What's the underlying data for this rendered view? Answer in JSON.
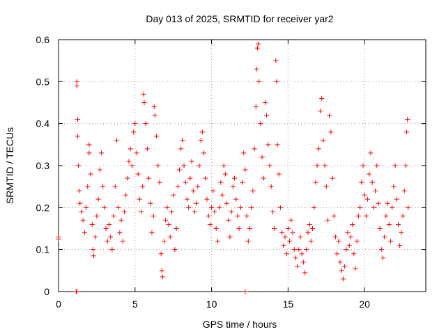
{
  "chart_data": {
    "type": "scatter",
    "title": "Day 013 of 2025, SRMTID for receiver yar2",
    "xlabel": "GPS time / hours",
    "ylabel": "SRMTID / TECUs",
    "xlim": [
      0,
      24
    ],
    "ylim": [
      0,
      0.6
    ],
    "xticks": [
      0,
      5,
      10,
      15,
      20
    ],
    "yticks": [
      0,
      0.1,
      0.2,
      0.3,
      0.4,
      0.5,
      0.6
    ],
    "grid": true,
    "marker": "plus",
    "series": [
      {
        "name": "SRMTID",
        "color": "#ff0000",
        "points": [
          [
            0.0,
            0.13
          ],
          [
            0.0,
            0.125
          ],
          [
            1.15,
            0.0
          ],
          [
            1.2,
            0.0
          ],
          [
            12.2,
            0.0
          ],
          [
            1.2,
            0.5
          ],
          [
            1.2,
            0.49
          ],
          [
            1.25,
            0.41
          ],
          [
            1.25,
            0.37
          ],
          [
            1.3,
            0.3
          ],
          [
            1.35,
            0.24
          ],
          [
            1.4,
            0.21
          ],
          [
            1.5,
            0.19
          ],
          [
            1.6,
            0.17
          ],
          [
            1.7,
            0.14
          ],
          [
            1.8,
            0.2
          ],
          [
            1.9,
            0.25
          ],
          [
            2.0,
            0.33
          ],
          [
            2.0,
            0.35
          ],
          [
            2.1,
            0.28
          ],
          [
            2.2,
            0.16
          ],
          [
            2.25,
            0.1
          ],
          [
            2.3,
            0.085
          ],
          [
            2.4,
            0.13
          ],
          [
            2.5,
            0.18
          ],
          [
            2.6,
            0.22
          ],
          [
            2.7,
            0.29
          ],
          [
            2.8,
            0.33
          ],
          [
            2.9,
            0.25
          ],
          [
            3.0,
            0.2
          ],
          [
            3.1,
            0.15
          ],
          [
            3.2,
            0.12
          ],
          [
            3.3,
            0.16
          ],
          [
            3.4,
            0.13
          ],
          [
            3.5,
            0.1
          ],
          [
            3.6,
            0.18
          ],
          [
            3.7,
            0.25
          ],
          [
            3.8,
            0.36
          ],
          [
            3.9,
            0.2
          ],
          [
            4.0,
            0.14
          ],
          [
            4.1,
            0.17
          ],
          [
            4.2,
            0.12
          ],
          [
            4.3,
            0.19
          ],
          [
            4.4,
            0.23
          ],
          [
            4.5,
            0.27
          ],
          [
            4.6,
            0.31
          ],
          [
            4.7,
            0.34
          ],
          [
            4.8,
            0.3
          ],
          [
            4.9,
            0.38
          ],
          [
            5.0,
            0.4
          ],
          [
            5.1,
            0.33
          ],
          [
            5.2,
            0.28
          ],
          [
            5.3,
            0.22
          ],
          [
            5.4,
            0.19
          ],
          [
            5.5,
            0.25
          ],
          [
            5.55,
            0.47
          ],
          [
            5.6,
            0.45
          ],
          [
            5.7,
            0.4
          ],
          [
            5.8,
            0.34
          ],
          [
            5.9,
            0.27
          ],
          [
            6.0,
            0.21
          ],
          [
            6.1,
            0.14
          ],
          [
            6.2,
            0.18
          ],
          [
            6.25,
            0.44
          ],
          [
            6.3,
            0.42
          ],
          [
            6.4,
            0.37
          ],
          [
            6.5,
            0.3
          ],
          [
            6.6,
            0.26
          ],
          [
            6.7,
            0.09
          ],
          [
            6.75,
            0.05
          ],
          [
            6.8,
            0.035
          ],
          [
            6.9,
            0.12
          ],
          [
            7.0,
            0.17
          ],
          [
            7.1,
            0.2
          ],
          [
            7.2,
            0.16
          ],
          [
            7.3,
            0.13
          ],
          [
            7.4,
            0.19
          ],
          [
            7.5,
            0.23
          ],
          [
            7.6,
            0.1
          ],
          [
            7.7,
            0.15
          ],
          [
            7.8,
            0.25
          ],
          [
            7.9,
            0.29
          ],
          [
            8.0,
            0.34
          ],
          [
            8.1,
            0.36
          ],
          [
            8.2,
            0.3
          ],
          [
            8.3,
            0.26
          ],
          [
            8.4,
            0.22
          ],
          [
            8.5,
            0.2
          ],
          [
            8.6,
            0.27
          ],
          [
            8.7,
            0.31
          ],
          [
            8.8,
            0.24
          ],
          [
            8.9,
            0.19
          ],
          [
            9.0,
            0.21
          ],
          [
            9.1,
            0.25
          ],
          [
            9.2,
            0.3
          ],
          [
            9.3,
            0.36
          ],
          [
            9.4,
            0.38
          ],
          [
            9.5,
            0.33
          ],
          [
            9.6,
            0.27
          ],
          [
            9.7,
            0.22
          ],
          [
            9.8,
            0.18
          ],
          [
            9.9,
            0.16
          ],
          [
            10.0,
            0.2
          ],
          [
            10.1,
            0.24
          ],
          [
            10.2,
            0.19
          ],
          [
            10.3,
            0.15
          ],
          [
            10.4,
            0.12
          ],
          [
            10.5,
            0.2
          ],
          [
            10.6,
            0.26
          ],
          [
            10.7,
            0.23
          ],
          [
            10.8,
            0.3
          ],
          [
            10.9,
            0.28
          ],
          [
            11.0,
            0.21
          ],
          [
            11.1,
            0.17
          ],
          [
            11.2,
            0.13
          ],
          [
            11.3,
            0.19
          ],
          [
            11.4,
            0.25
          ],
          [
            11.5,
            0.27
          ],
          [
            11.6,
            0.22
          ],
          [
            11.7,
            0.18
          ],
          [
            11.8,
            0.15
          ],
          [
            11.9,
            0.2
          ],
          [
            12.0,
            0.26
          ],
          [
            12.1,
            0.33
          ],
          [
            12.2,
            0.29
          ],
          [
            12.3,
            0.18
          ],
          [
            12.4,
            0.12
          ],
          [
            12.5,
            0.15
          ],
          [
            12.6,
            0.2
          ],
          [
            12.7,
            0.24
          ],
          [
            12.8,
            0.34
          ],
          [
            12.9,
            0.44
          ],
          [
            12.95,
            0.53
          ],
          [
            13.0,
            0.58
          ],
          [
            13.05,
            0.59
          ],
          [
            13.1,
            0.5
          ],
          [
            13.2,
            0.4
          ],
          [
            13.3,
            0.32
          ],
          [
            13.4,
            0.27
          ],
          [
            13.5,
            0.45
          ],
          [
            13.6,
            0.42
          ],
          [
            13.7,
            0.35
          ],
          [
            13.8,
            0.3
          ],
          [
            13.9,
            0.25
          ],
          [
            14.0,
            0.19
          ],
          [
            14.1,
            0.15
          ],
          [
            14.2,
            0.55
          ],
          [
            14.25,
            0.5
          ],
          [
            14.3,
            0.35
          ],
          [
            14.4,
            0.28
          ],
          [
            14.5,
            0.2
          ],
          [
            14.6,
            0.14
          ],
          [
            14.7,
            0.11
          ],
          [
            14.8,
            0.13
          ],
          [
            14.9,
            0.09
          ],
          [
            15.0,
            0.15
          ],
          [
            15.1,
            0.12
          ],
          [
            15.2,
            0.17
          ],
          [
            15.3,
            0.14
          ],
          [
            15.4,
            0.1
          ],
          [
            15.5,
            0.08
          ],
          [
            15.6,
            0.06
          ],
          [
            15.7,
            0.1
          ],
          [
            15.8,
            0.13
          ],
          [
            15.9,
            0.09
          ],
          [
            16.0,
            0.07
          ],
          [
            16.1,
            0.045
          ],
          [
            16.2,
            0.1
          ],
          [
            16.3,
            0.14
          ],
          [
            16.4,
            0.16
          ],
          [
            16.5,
            0.12
          ],
          [
            16.6,
            0.15
          ],
          [
            16.7,
            0.2
          ],
          [
            16.8,
            0.26
          ],
          [
            16.9,
            0.3
          ],
          [
            17.0,
            0.34
          ],
          [
            17.1,
            0.43
          ],
          [
            17.2,
            0.46
          ],
          [
            17.3,
            0.36
          ],
          [
            17.4,
            0.3
          ],
          [
            17.5,
            0.25
          ],
          [
            17.6,
            0.17
          ],
          [
            17.7,
            0.42
          ],
          [
            17.8,
            0.38
          ],
          [
            17.9,
            0.27
          ],
          [
            18.0,
            0.18
          ],
          [
            18.1,
            0.13
          ],
          [
            18.2,
            0.09
          ],
          [
            18.3,
            0.12
          ],
          [
            18.4,
            0.07
          ],
          [
            18.5,
            0.05
          ],
          [
            18.6,
            0.03
          ],
          [
            18.7,
            0.06
          ],
          [
            18.8,
            0.1
          ],
          [
            18.9,
            0.14
          ],
          [
            19.0,
            0.11
          ],
          [
            19.1,
            0.13
          ],
          [
            19.2,
            0.16
          ],
          [
            19.3,
            0.09
          ],
          [
            19.4,
            0.055
          ],
          [
            19.5,
            0.12
          ],
          [
            19.6,
            0.18
          ],
          [
            19.7,
            0.2
          ],
          [
            19.8,
            0.26
          ],
          [
            19.9,
            0.3
          ],
          [
            20.0,
            0.23
          ],
          [
            20.1,
            0.18
          ],
          [
            20.2,
            0.22
          ],
          [
            20.3,
            0.28
          ],
          [
            20.4,
            0.33
          ],
          [
            20.5,
            0.26
          ],
          [
            20.6,
            0.2
          ],
          [
            20.7,
            0.24
          ],
          [
            20.8,
            0.3
          ],
          [
            20.9,
            0.21
          ],
          [
            21.0,
            0.15
          ],
          [
            21.1,
            0.1
          ],
          [
            21.2,
            0.08
          ],
          [
            21.3,
            0.13
          ],
          [
            21.4,
            0.18
          ],
          [
            21.5,
            0.21
          ],
          [
            21.6,
            0.16
          ],
          [
            21.7,
            0.12
          ],
          [
            21.8,
            0.2
          ],
          [
            21.9,
            0.25
          ],
          [
            22.0,
            0.3
          ],
          [
            22.1,
            0.22
          ],
          [
            22.2,
            0.16
          ],
          [
            22.3,
            0.11
          ],
          [
            22.4,
            0.14
          ],
          [
            22.5,
            0.18
          ],
          [
            22.6,
            0.24
          ],
          [
            22.7,
            0.3
          ],
          [
            22.75,
            0.38
          ],
          [
            22.8,
            0.41
          ],
          [
            22.85,
            0.2
          ]
        ]
      }
    ]
  }
}
